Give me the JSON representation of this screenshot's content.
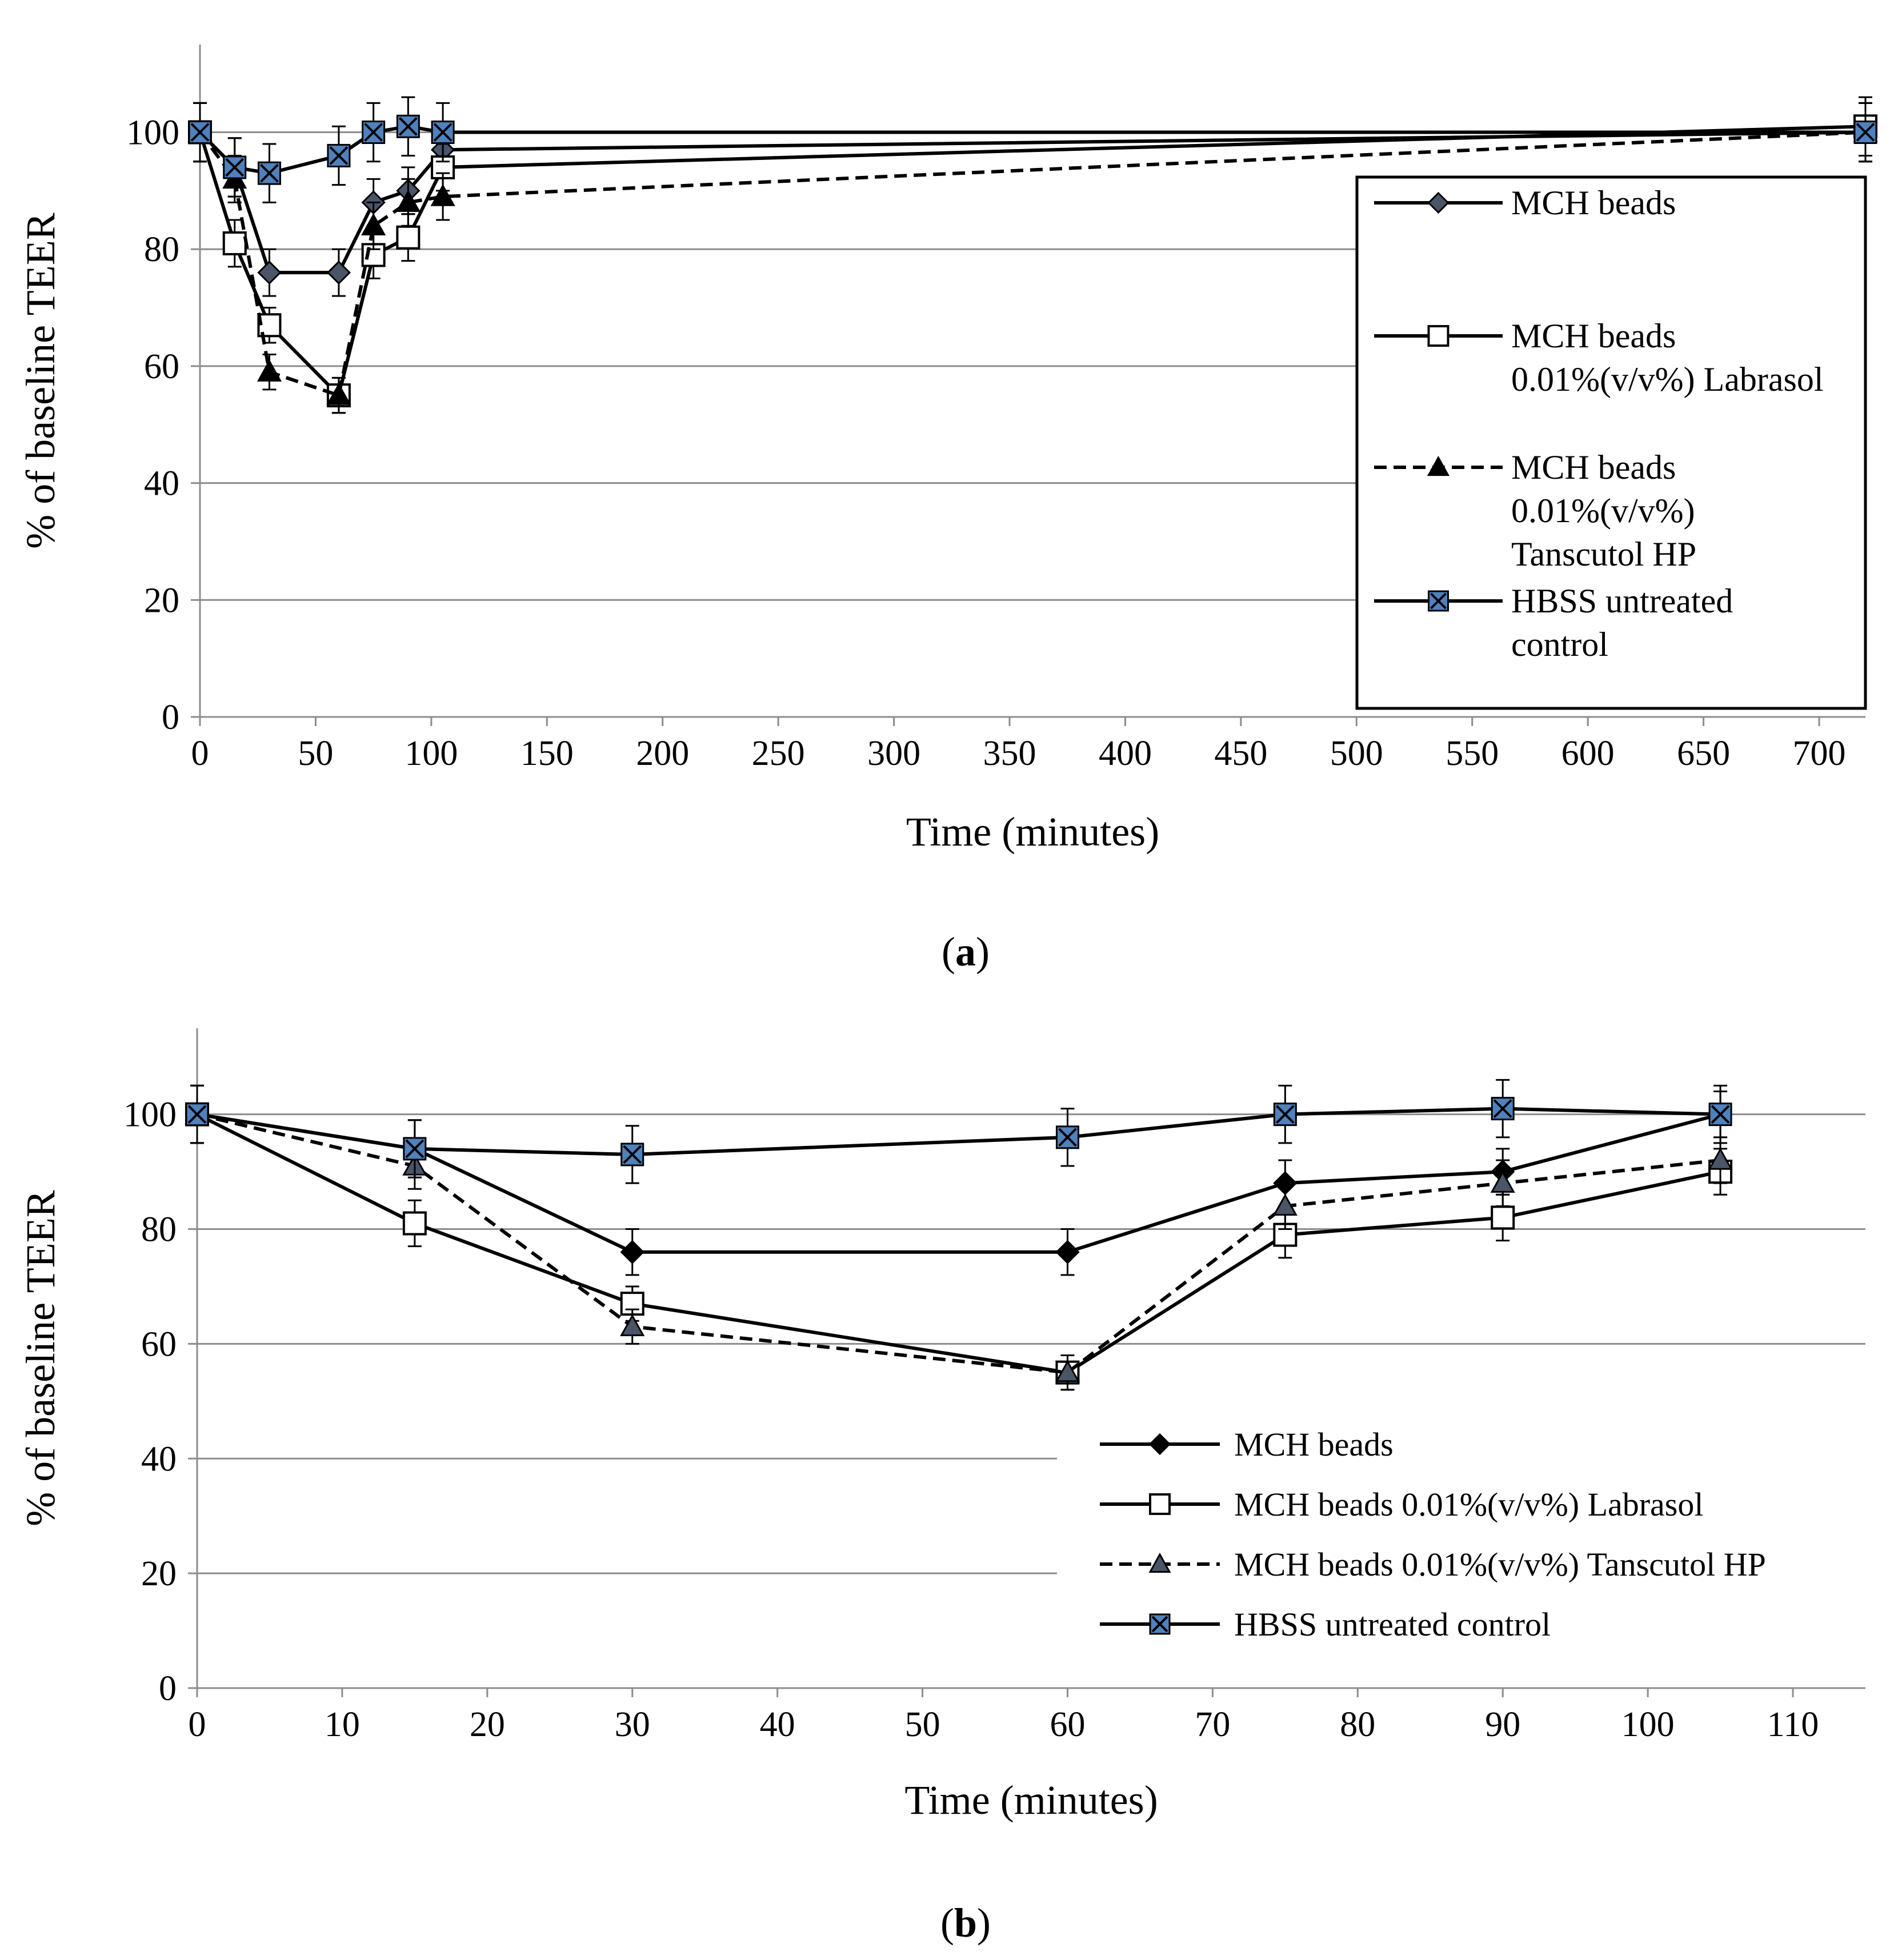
{
  "colors": {
    "grid": "#8c8c8c",
    "axis": "#8c8c8c",
    "line": "#000000",
    "triangle_a": "#000000",
    "triangle_b": "#4a5568",
    "diamond_a": "#4a5568",
    "diamond_b": "#000000",
    "square": "#ffffff",
    "hbss": "#4f81bd"
  },
  "chart_data": [
    {
      "panel": "a",
      "caption": {
        "open": "(",
        "letter": "a",
        "close": ")"
      },
      "type": "line",
      "xlabel": "Time (minutes)",
      "ylabel": "% of baseline TEER",
      "xlim": [
        0,
        720
      ],
      "ylim": [
        0,
        115
      ],
      "xticks": [
        0,
        50,
        100,
        150,
        200,
        250,
        300,
        350,
        400,
        450,
        500,
        550,
        600,
        650,
        700
      ],
      "yticks": [
        0,
        20,
        40,
        60,
        80,
        100
      ],
      "grid": "horizontal",
      "legend_position": "right, boxed",
      "legend": [
        [
          "MCH beads"
        ],
        [
          "MCH beads",
          "0.01%(v/v%) Labrasol"
        ],
        [
          "MCH beads",
          "0.01%(v/v%)",
          "Tanscutol HP"
        ],
        [
          "HBSS untreated",
          "control"
        ]
      ],
      "series": [
        {
          "name": "MCH beads",
          "marker": "diamond",
          "dash": "solid",
          "x": [
            0,
            15,
            30,
            60,
            75,
            90,
            105,
            720
          ],
          "y": [
            100,
            94,
            76,
            76,
            88,
            90,
            97,
            100
          ],
          "err": [
            5,
            5,
            4,
            4,
            4,
            4,
            4,
            5
          ]
        },
        {
          "name": "MCH beads 0.01%(v/v%) Labrasol",
          "marker": "square",
          "dash": "solid",
          "x": [
            0,
            15,
            30,
            60,
            75,
            90,
            105,
            720
          ],
          "y": [
            100,
            81,
            67,
            55,
            79,
            82,
            94,
            101
          ],
          "err": [
            5,
            4,
            3,
            3,
            4,
            4,
            4,
            5
          ]
        },
        {
          "name": "MCH beads 0.01%(v/v%) Tanscutol HP",
          "marker": "triangle",
          "dash": "dashed",
          "x": [
            0,
            15,
            30,
            60,
            75,
            90,
            105,
            720
          ],
          "y": [
            100,
            92,
            59,
            55,
            84,
            88,
            89,
            100
          ],
          "err": [
            5,
            4,
            3,
            3,
            4,
            4,
            4,
            5
          ]
        },
        {
          "name": "HBSS untreated control",
          "marker": "xsquare",
          "dash": "solid",
          "x": [
            0,
            15,
            30,
            60,
            75,
            90,
            105,
            720
          ],
          "y": [
            100,
            94,
            93,
            96,
            100,
            101,
            100,
            100
          ],
          "err": [
            5,
            5,
            5,
            5,
            5,
            5,
            5,
            5
          ]
        }
      ]
    },
    {
      "panel": "b",
      "caption": {
        "open": "(",
        "letter": "b",
        "close": ")"
      },
      "type": "line",
      "xlabel": "Time (minutes)",
      "ylabel": "% of baseline TEER",
      "xlim": [
        0,
        115
      ],
      "ylim": [
        0,
        115
      ],
      "xticks": [
        0,
        10,
        20,
        30,
        40,
        50,
        60,
        70,
        80,
        90,
        100,
        110
      ],
      "yticks": [
        0,
        20,
        40,
        60,
        80,
        100
      ],
      "grid": "horizontal",
      "legend_position": "bottom-right",
      "legend": [
        [
          "MCH beads"
        ],
        [
          "MCH beads 0.01%(v/v%) Labrasol"
        ],
        [
          "MCH beads 0.01%(v/v%) Tanscutol HP"
        ],
        [
          "HBSS untreated control"
        ]
      ],
      "series": [
        {
          "name": "MCH beads",
          "marker": "diamond",
          "dash": "solid",
          "x": [
            0,
            15,
            30,
            60,
            75,
            90,
            105
          ],
          "y": [
            100,
            94,
            76,
            76,
            88,
            90,
            100
          ],
          "err": [
            5,
            5,
            4,
            4,
            4,
            4,
            4
          ]
        },
        {
          "name": "MCH beads 0.01%(v/v%) Labrasol",
          "marker": "square",
          "dash": "solid",
          "x": [
            0,
            15,
            30,
            60,
            75,
            90,
            105
          ],
          "y": [
            100,
            81,
            67,
            55,
            79,
            82,
            90
          ],
          "err": [
            5,
            4,
            3,
            3,
            4,
            4,
            4
          ]
        },
        {
          "name": "MCH beads 0.01%(v/v%) Tanscutol HP",
          "marker": "triangle",
          "dash": "dashed",
          "x": [
            0,
            15,
            30,
            60,
            75,
            90,
            105
          ],
          "y": [
            100,
            91,
            63,
            55,
            84,
            88,
            92
          ],
          "err": [
            5,
            4,
            3,
            3,
            4,
            4,
            4
          ]
        },
        {
          "name": "HBSS untreated control",
          "marker": "xsquare",
          "dash": "solid",
          "x": [
            0,
            15,
            30,
            60,
            75,
            90,
            105
          ],
          "y": [
            100,
            94,
            93,
            96,
            100,
            101,
            100
          ],
          "err": [
            5,
            5,
            5,
            5,
            5,
            5,
            5
          ]
        }
      ]
    }
  ]
}
